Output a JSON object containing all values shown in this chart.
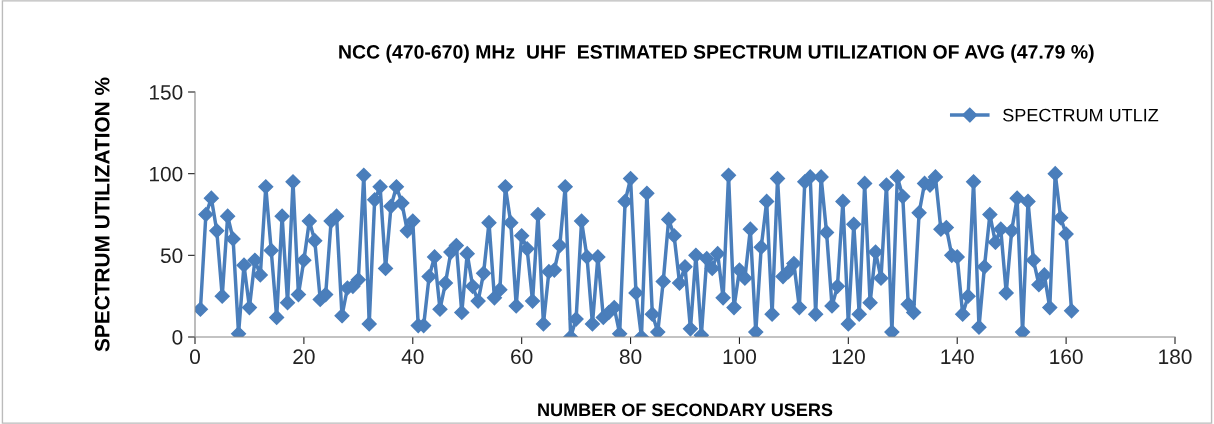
{
  "chart_data": {
    "type": "line",
    "title": "NCC (470-670) MHz  UHF  ESTIMATED SPECTRUM UTILIZATION OF AVG (47.79 %)",
    "xlabel": "NUMBER OF SECONDARY USERS",
    "ylabel": "SPECTRUM UTILIZATION %",
    "x": [
      1,
      2,
      3,
      4,
      5,
      6,
      7,
      8,
      9,
      10,
      11,
      12,
      13,
      14,
      15,
      16,
      17,
      18,
      19,
      20,
      21,
      22,
      23,
      24,
      25,
      26,
      27,
      28,
      29,
      30,
      31,
      32,
      33,
      34,
      35,
      36,
      37,
      38,
      39,
      40,
      41,
      42,
      43,
      44,
      45,
      46,
      47,
      48,
      49,
      50,
      51,
      52,
      53,
      54,
      55,
      56,
      57,
      58,
      59,
      60,
      61,
      62,
      63,
      64,
      65,
      66,
      67,
      68,
      69,
      70,
      71,
      72,
      73,
      74,
      75,
      76,
      77,
      78,
      79,
      80,
      81,
      82,
      83,
      84,
      85,
      86,
      87,
      88,
      89,
      90,
      91,
      92,
      93,
      94,
      95,
      96,
      97,
      98,
      99,
      100,
      101,
      102,
      103,
      104,
      105,
      106,
      107,
      108,
      109,
      110,
      111,
      112,
      113,
      114,
      115,
      116,
      117,
      118,
      119,
      120,
      121,
      122,
      123,
      124,
      125,
      126,
      127,
      128,
      129,
      130,
      131,
      132,
      133,
      134,
      135,
      136,
      137,
      138,
      139,
      140,
      141,
      142,
      143,
      144,
      145,
      146,
      147,
      148,
      149,
      150,
      151,
      152,
      153,
      154,
      155,
      156,
      157,
      158,
      159,
      160,
      161
    ],
    "series": [
      {
        "name": "SPECTRUM UTLIZ",
        "color": "#4a7ebb",
        "values": [
          17,
          75,
          85,
          65,
          25,
          74,
          60,
          2,
          44,
          18,
          47,
          38,
          92,
          53,
          12,
          74,
          21,
          95,
          26,
          47,
          71,
          59,
          23,
          26,
          71,
          74,
          13,
          30,
          31,
          35,
          99,
          8,
          84,
          92,
          42,
          80,
          92,
          82,
          65,
          71,
          7,
          7,
          37,
          49,
          17,
          33,
          52,
          56,
          15,
          51,
          31,
          22,
          39,
          70,
          24,
          29,
          92,
          70,
          19,
          62,
          54,
          22,
          75,
          8,
          40,
          41,
          56,
          92,
          0,
          11,
          71,
          49,
          8,
          49,
          12,
          15,
          18,
          2,
          83,
          97,
          27,
          0,
          88,
          14,
          3,
          34,
          72,
          62,
          33,
          43,
          5,
          50,
          1,
          48,
          42,
          51,
          24,
          99,
          18,
          41,
          36,
          66,
          3,
          55,
          83,
          14,
          97,
          37,
          40,
          45,
          18,
          95,
          98,
          14,
          98,
          64,
          19,
          31,
          83,
          8,
          69,
          14,
          94,
          21,
          52,
          36,
          93,
          3,
          98,
          86,
          20,
          15,
          76,
          94,
          93,
          98,
          66,
          67,
          50,
          49,
          14,
          25,
          95,
          6,
          43,
          75,
          58,
          66,
          27,
          65,
          85,
          3,
          83,
          47,
          32,
          38,
          18,
          100,
          73,
          63,
          16
        ]
      }
    ],
    "xlim": [
      0,
      180
    ],
    "xticks": [
      0,
      20,
      40,
      60,
      80,
      100,
      120,
      140,
      160,
      180
    ],
    "ylim": [
      0,
      150
    ],
    "yticks": [
      0,
      50,
      100,
      150
    ],
    "marker": "diamond",
    "line_style": "solid",
    "legend": "top right",
    "grid": false
  }
}
